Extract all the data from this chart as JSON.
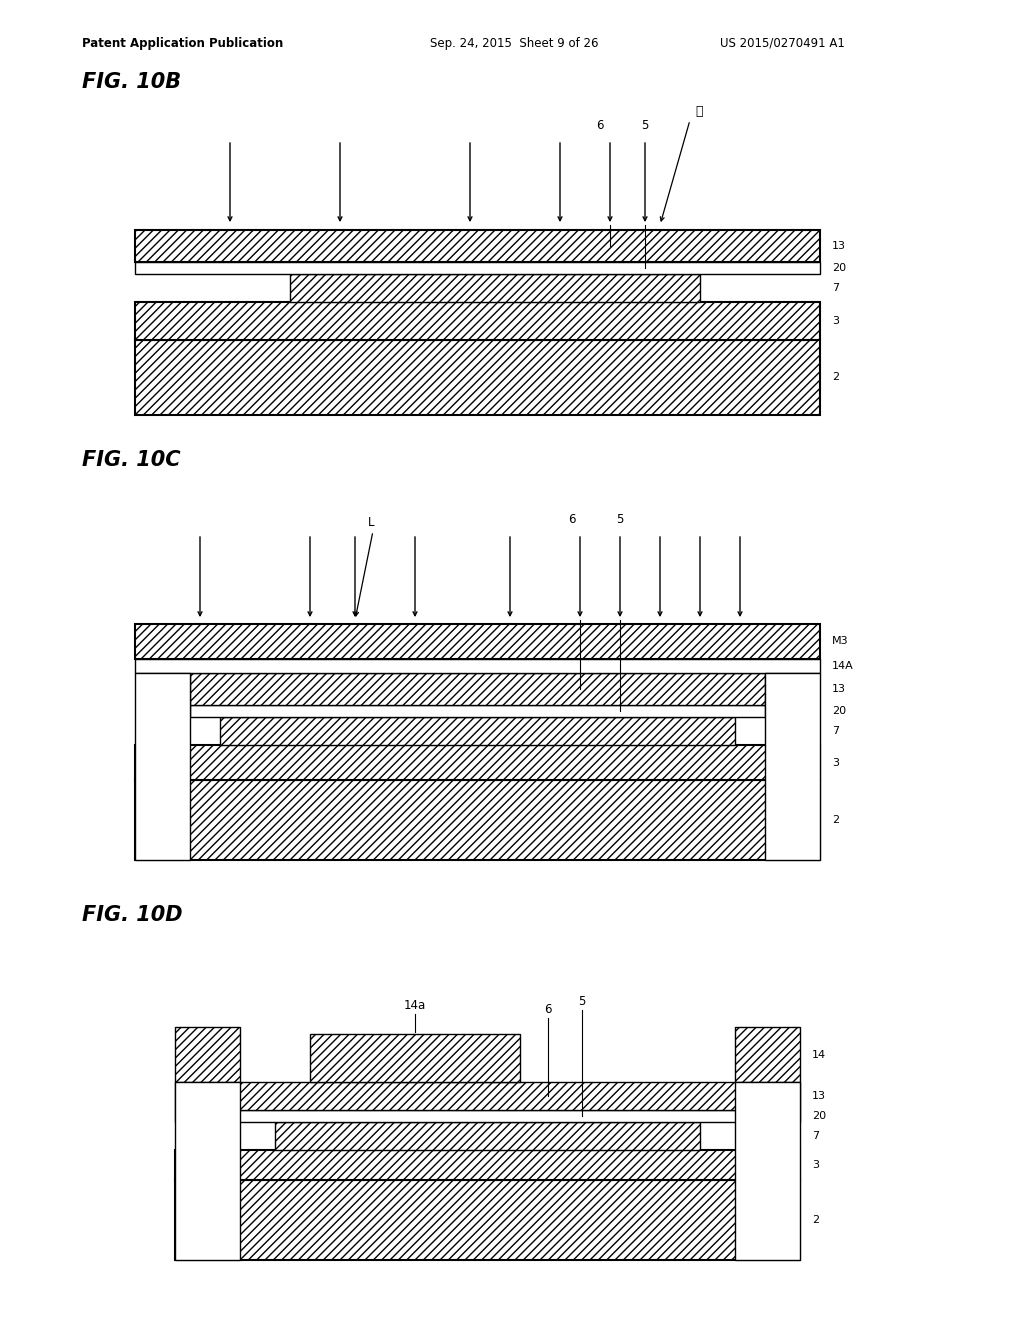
{
  "bg_color": "#ffffff",
  "header_left": "Patent Application Publication",
  "header_mid": "Sep. 24, 2015  Sheet 9 of 26",
  "header_right": "US 2015/0270491 A1",
  "lw": 1.0,
  "lw_thick": 1.5
}
